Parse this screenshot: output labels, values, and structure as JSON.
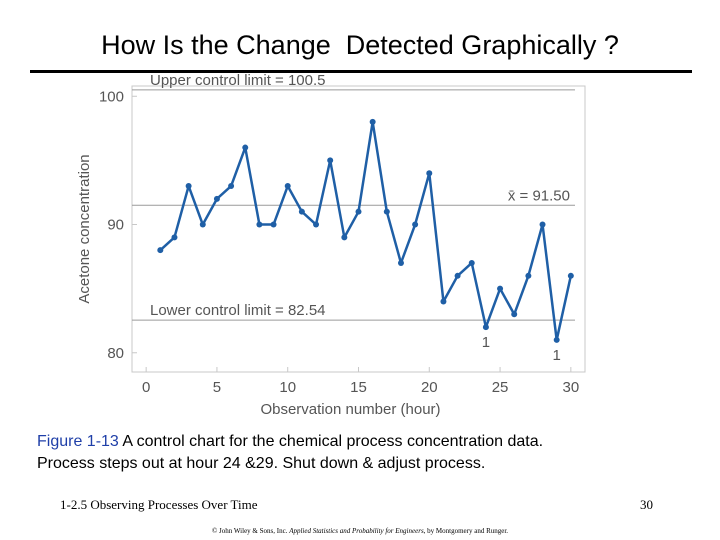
{
  "slide": {
    "title": "How Is the Change  Detected Graphically ?",
    "caption_label": "Figure 1-13",
    "caption_text": "  A control chart for the chemical process concentration data.",
    "caption_line2": "Process steps out at hour 24 &29.  Shut down & adjust process.",
    "footer_left": "1-2.5 Observing Processes Over Time",
    "footer_right": "30",
    "copyright_a": "© John Wiley & Sons, Inc.  ",
    "copyright_b": "Applied Statistics and Probability for Engineers",
    "copyright_c": ", by Montgomery and Runger."
  },
  "chart_data": {
    "type": "line",
    "xlabel": "Observation number (hour)",
    "ylabel": "Acetone concentration",
    "xlim": [
      -1,
      31
    ],
    "ylim": [
      78.5,
      100.8
    ],
    "xticks": [
      0,
      5,
      10,
      15,
      20,
      25,
      30
    ],
    "yticks": [
      80,
      90,
      100
    ],
    "x": [
      1,
      2,
      3,
      4,
      5,
      6,
      7,
      8,
      9,
      10,
      11,
      12,
      13,
      14,
      15,
      16,
      17,
      18,
      19,
      20,
      21,
      22,
      23,
      24,
      25,
      26,
      27,
      28,
      29,
      30
    ],
    "values": [
      88,
      89,
      93,
      90,
      92,
      93,
      96,
      90,
      90,
      93,
      91,
      90,
      95,
      89,
      91,
      98,
      91,
      87,
      90,
      94,
      84,
      86,
      87,
      82,
      85,
      83,
      86,
      90,
      81,
      86
    ],
    "reference_lines": [
      {
        "label": "Upper control limit = 100.5",
        "value": 100.5
      },
      {
        "label": "x̄ = 91.50",
        "value": 91.5
      },
      {
        "label": "Lower control limit = 82.54",
        "value": 82.54
      }
    ],
    "annotations": [
      {
        "text": "1",
        "x": 24
      },
      {
        "text": "1",
        "x": 29
      }
    ],
    "colors": {
      "series": "#1f5fa6",
      "reference": "#9a9a9a",
      "frame": "#c8c8c8",
      "text": "#555555"
    }
  }
}
